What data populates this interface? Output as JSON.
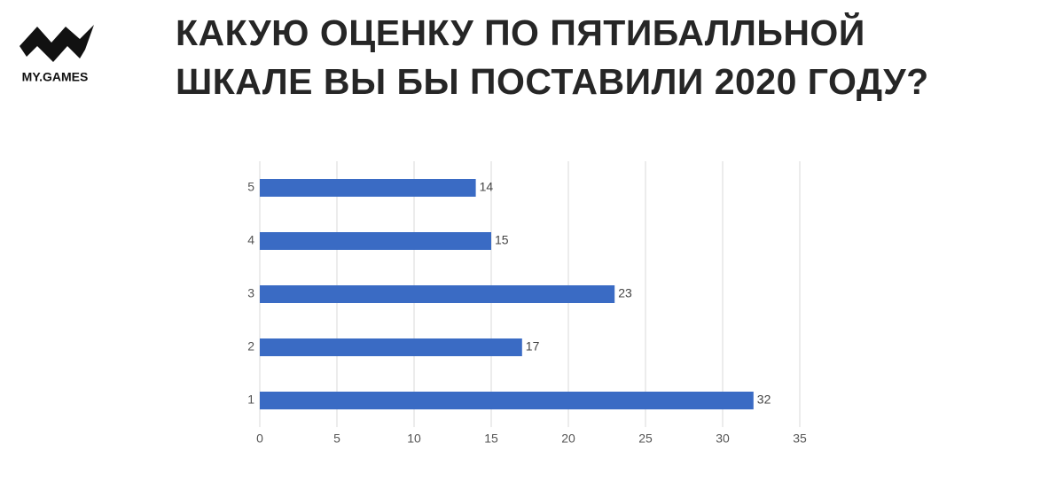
{
  "logo": "MY.GAMES",
  "chart_data": {
    "type": "barh",
    "title": [
      "КАКУЮ ОЦЕНКУ ПО ПЯТИБАЛЛЬНОЙ",
      "ШКАЛЕ ВЫ БЫ ПОСТАВИЛИ 2020 ГОДУ?"
    ],
    "categories": [
      "5",
      "4",
      "3",
      "2",
      "1"
    ],
    "values": [
      14,
      15,
      23,
      17,
      32
    ],
    "color": "#3a6bc4",
    "xlim": [
      0,
      35
    ],
    "xticks": [
      0,
      5,
      10,
      15,
      20,
      25,
      30,
      35
    ],
    "grid": true
  }
}
